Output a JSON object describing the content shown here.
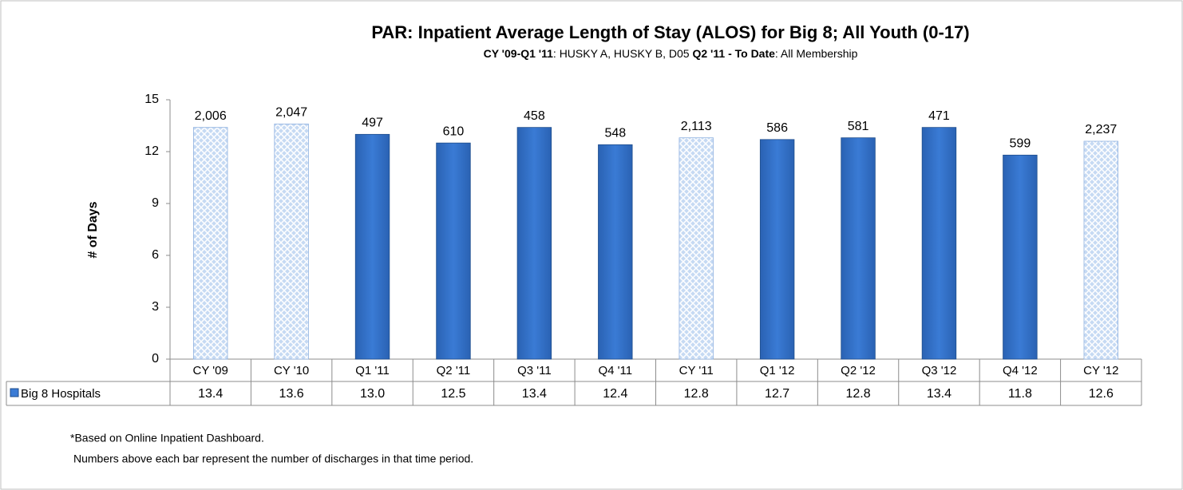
{
  "chart_data": {
    "type": "bar",
    "title": "PAR: Inpatient Average Length of Stay (ALOS) for Big 8; All Youth (0-17)",
    "subtitle": [
      {
        "text": "CY '09-Q1 '11",
        "bold": true
      },
      {
        "text": ": HUSKY A, HUSKY B, D05 ",
        "bold": false
      },
      {
        "text": "Q2 '11 - To Date",
        "bold": true
      },
      {
        "text": ": All Membership",
        "bold": false
      }
    ],
    "y_label": "# of Days",
    "categories": [
      "CY '09",
      "CY '10",
      "Q1 '11",
      "Q2 '11",
      "Q3 '11",
      "Q4 '11",
      "CY '11",
      "Q1 '12",
      "Q2 '12",
      "Q3 '12",
      "Q4 '12",
      "CY '12"
    ],
    "series": [
      {
        "name": "Big 8 Hospitals",
        "color": "#3a7bd5",
        "values": [
          13.4,
          13.6,
          13.0,
          12.5,
          13.4,
          12.4,
          12.8,
          12.7,
          12.8,
          13.4,
          11.8,
          12.6
        ],
        "value_labels": [
          "13.4",
          "13.6",
          "13.0",
          "12.5",
          "13.4",
          "12.4",
          "12.8",
          "12.7",
          "12.8",
          "13.4",
          "11.8",
          "12.6"
        ],
        "hatched": [
          true,
          true,
          false,
          false,
          false,
          false,
          true,
          false,
          false,
          false,
          false,
          true
        ],
        "hatch_color": "#c6daf3"
      }
    ],
    "discharges": [
      {
        "value": 2006,
        "label": "2,006"
      },
      {
        "value": 2047,
        "label": "2,047"
      },
      {
        "value": 497,
        "label": "497"
      },
      {
        "value": 610,
        "label": "610"
      },
      {
        "value": 458,
        "label": "458"
      },
      {
        "value": 548,
        "label": "548"
      },
      {
        "value": 2113,
        "label": "2,113"
      },
      {
        "value": 586,
        "label": "586"
      },
      {
        "value": 581,
        "label": "581"
      },
      {
        "value": 471,
        "label": "471"
      },
      {
        "value": 599,
        "label": "599"
      },
      {
        "value": 2237,
        "label": "2,237"
      }
    ],
    "ylim": [
      0,
      15
    ],
    "yticks": [
      0,
      3,
      6,
      9,
      12,
      15
    ],
    "grid": false,
    "footnotes": [
      "*Based on Online Inpatient Dashboard.",
      "Numbers above each bar represent the number of discharges in that time period."
    ]
  }
}
